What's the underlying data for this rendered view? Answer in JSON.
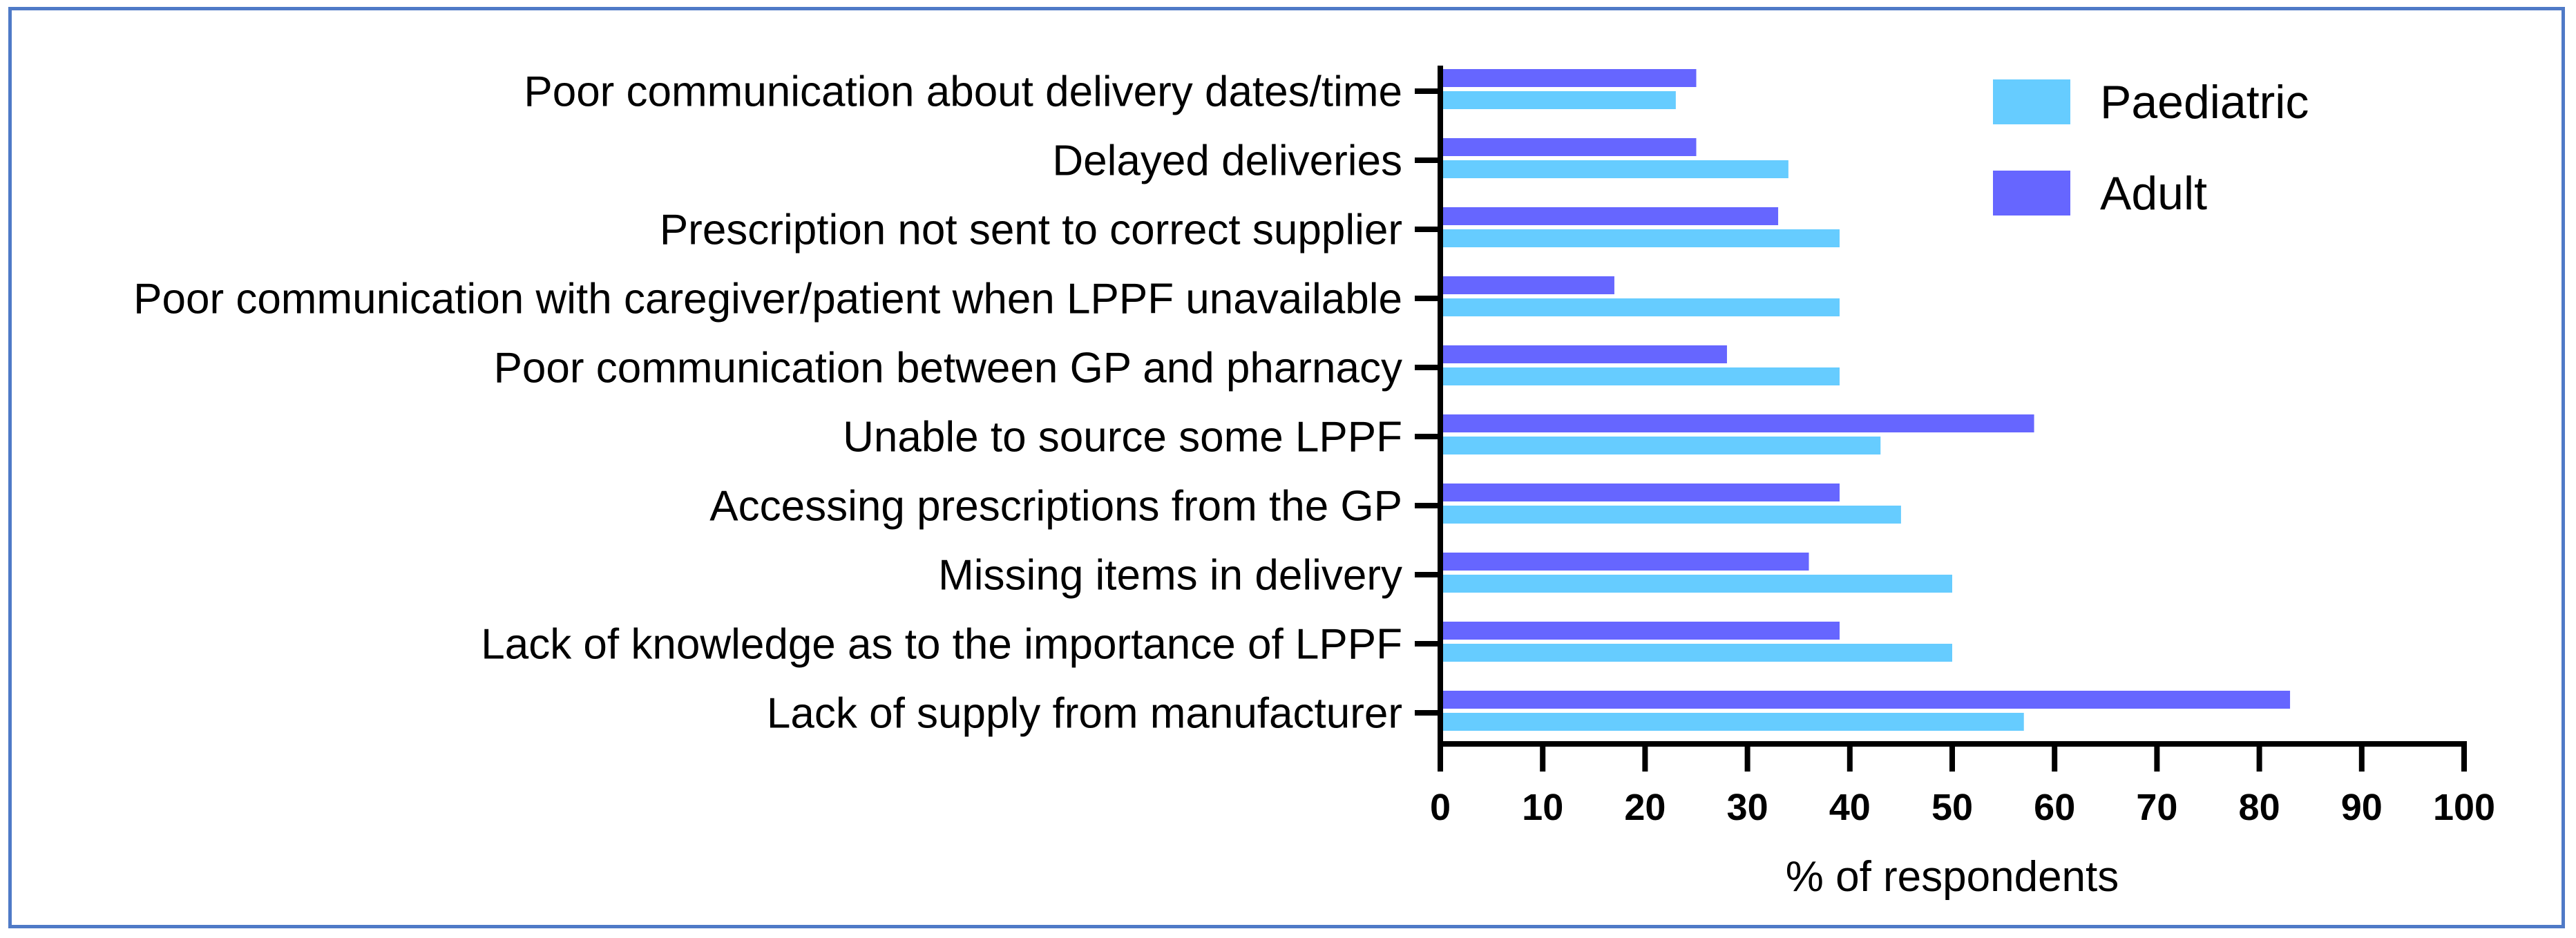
{
  "chart_data": {
    "type": "bar",
    "orientation": "horizontal",
    "categories": [
      "Poor communication about delivery dates/time",
      "Delayed deliveries",
      "Prescription not sent to correct supplier",
      "Poor communication with caregiver/patient when LPPF unavailable",
      "Poor communication between GP and pharnacy",
      "Unable to source some LPPF",
      "Accessing prescriptions from the GP",
      "Missing items in delivery",
      "Lack of knowledge as to the importance of LPPF",
      "Lack of supply from manufacturer"
    ],
    "series": [
      {
        "name": "Adult",
        "color": "#6666ff",
        "values": [
          25,
          25,
          33,
          17,
          28,
          58,
          39,
          36,
          39,
          83
        ]
      },
      {
        "name": "Paediatric",
        "color": "#66ccff",
        "values": [
          23,
          34,
          39,
          39,
          39,
          43,
          45,
          50,
          50,
          57
        ]
      }
    ],
    "legend_order": [
      "Paediatric",
      "Adult"
    ],
    "legend_position": "top-right",
    "xlabel": "% of respondents",
    "ylabel": "",
    "xlim": [
      0,
      100
    ],
    "xticks": [
      "0",
      "10",
      "20",
      "30",
      "40",
      "50",
      "60",
      "70",
      "80",
      "90",
      "100"
    ],
    "grid": false
  }
}
